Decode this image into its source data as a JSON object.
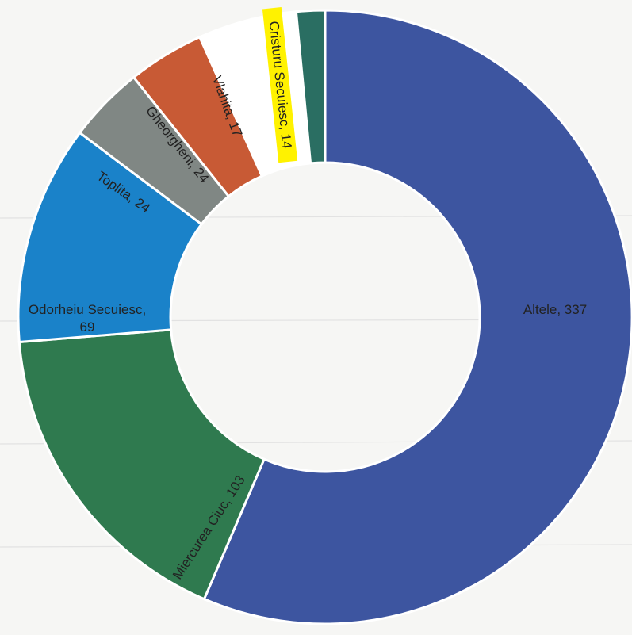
{
  "chart_data": {
    "type": "pie",
    "variant": "donut",
    "title": "",
    "legend": "none",
    "slices": [
      {
        "label": "Altele",
        "value": 337,
        "color": "#3d55a0",
        "label_text": "Altele, 337",
        "label_color": "#2e3f7a",
        "label_bg": ""
      },
      {
        "label": "Miercurea Ciuc",
        "value": 103,
        "color": "#2f7a4f",
        "label_text": "Miercurea Ciuc, 103",
        "label_color": "#1f4f33",
        "label_bg": ""
      },
      {
        "label": "Odorheiu Secuiesc",
        "value": 69,
        "color": "#1a82c9",
        "label_text": "Odorheiu Secuiesc,",
        "label_text_2": "69",
        "label_color": "#10558a",
        "label_bg": ""
      },
      {
        "label": "Toplita",
        "value": 24,
        "color": "#808784",
        "label_text": "Toplita, 24",
        "label_color": "#2a2a2a",
        "label_bg": ""
      },
      {
        "label": "Gheorgheni",
        "value": 24,
        "color": "#c85a35",
        "label_text": "Gheorgheni, 24",
        "label_color": "#2a2a2a",
        "label_bg": ""
      },
      {
        "label": "Vlahita",
        "value": 17,
        "color": "#ffffff",
        "label_text": "Vlahita, 17",
        "label_color": "#111111",
        "label_bg": ""
      },
      {
        "label": "Cristuru Secuiesc",
        "value": 14,
        "color": "#ffffff",
        "label_text": "Cristuru Secuiesc, 14",
        "label_color": "#111111",
        "label_bg": "#fff200"
      },
      {
        "label": "",
        "value": 9,
        "color": "#2a6e62",
        "label_text": "",
        "label_color": "",
        "label_bg": ""
      }
    ]
  }
}
